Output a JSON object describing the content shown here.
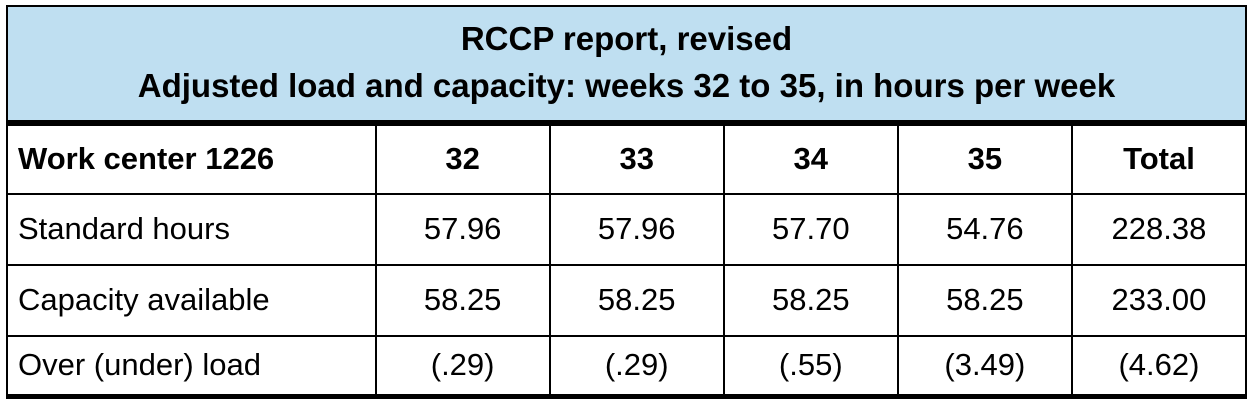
{
  "title": {
    "line1": "RCCP report, revised",
    "line2": "Adjusted load and capacity: weeks 32 to 35, in hours per week"
  },
  "colors": {
    "title_background": "#BFDFF1",
    "border": "#000000",
    "text": "#000000",
    "cell_background": "#FFFFFF"
  },
  "table": {
    "header": [
      "Work center 1226",
      "32",
      "33",
      "34",
      "35",
      "Total"
    ],
    "rows": [
      {
        "label": "Standard hours",
        "values": [
          "57.96",
          "57.96",
          "57.70",
          "54.76",
          "228.38"
        ]
      },
      {
        "label": "Capacity available",
        "values": [
          "58.25",
          "58.25",
          "58.25",
          "58.25",
          "233.00"
        ]
      },
      {
        "label": "Over (under) load",
        "values": [
          "(.29)",
          "(.29)",
          "(.55)",
          "(3.49)",
          "(4.62)"
        ]
      }
    ]
  },
  "chart_data": {
    "type": "table",
    "title": "RCCP report, revised — Adjusted load and capacity: weeks 32 to 35, in hours per week",
    "categories": [
      "32",
      "33",
      "34",
      "35",
      "Total"
    ],
    "series": [
      {
        "name": "Standard hours",
        "values": [
          57.96,
          57.96,
          57.7,
          54.76,
          228.38
        ]
      },
      {
        "name": "Capacity available",
        "values": [
          58.25,
          58.25,
          58.25,
          58.25,
          233.0
        ]
      },
      {
        "name": "Over (under) load",
        "values": [
          -0.29,
          -0.29,
          -0.55,
          -3.49,
          -4.62
        ]
      }
    ]
  }
}
